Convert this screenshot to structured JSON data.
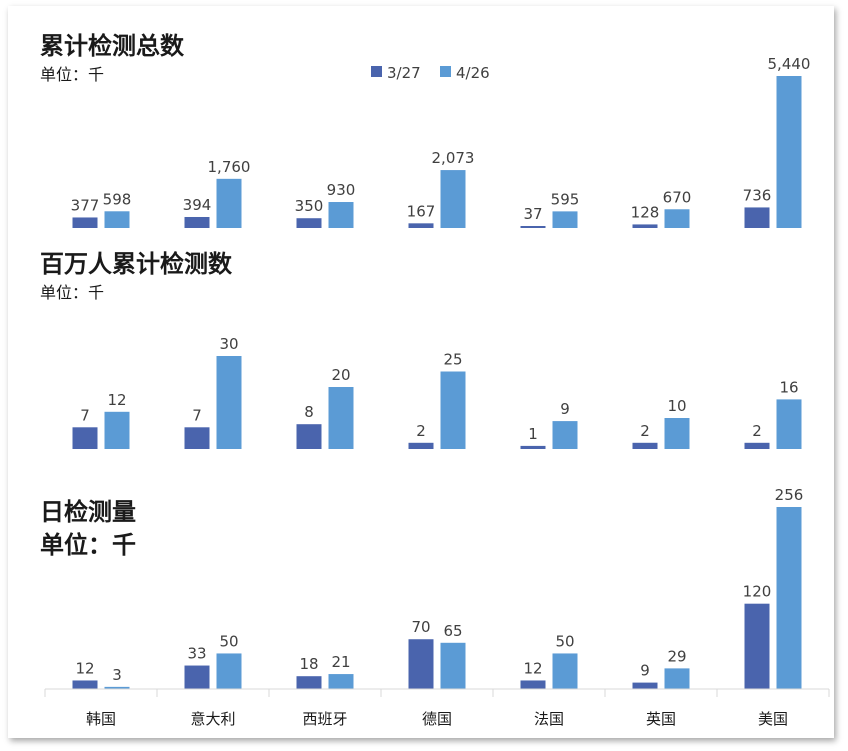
{
  "colors": {
    "series_a": "#4a64ad",
    "series_b": "#5b9bd5",
    "axis": "#d9d9d9"
  },
  "legend": [
    {
      "label": "3/27"
    },
    {
      "label": "4/26"
    }
  ],
  "chart_data": [
    {
      "type": "bar",
      "title": "累计检测总数",
      "unit": "单位：千",
      "categories": [
        "韩国",
        "意大利",
        "西班牙",
        "德国",
        "法国",
        "英国",
        "美国"
      ],
      "series": [
        {
          "name": "3/27",
          "values": [
            377,
            394,
            350,
            167,
            37,
            128,
            736
          ],
          "labels": [
            "377",
            "394",
            "350",
            "167",
            "37",
            "128",
            "736"
          ]
        },
        {
          "name": "4/26",
          "values": [
            598,
            1760,
            930,
            2073,
            595,
            670,
            5440
          ],
          "labels": [
            "598",
            "1,760",
            "930",
            "2,073",
            "595",
            "670",
            "5,440"
          ]
        }
      ]
    },
    {
      "type": "bar",
      "title": "百万人累计检测数",
      "unit": "单位：千",
      "categories": [
        "韩国",
        "意大利",
        "西班牙",
        "德国",
        "法国",
        "英国",
        "美国"
      ],
      "series": [
        {
          "name": "3/27",
          "values": [
            7,
            7,
            8,
            2,
            1,
            2,
            2
          ],
          "labels": [
            "7",
            "7",
            "8",
            "2",
            "1",
            "2",
            "2"
          ]
        },
        {
          "name": "4/26",
          "values": [
            12,
            30,
            20,
            25,
            9,
            10,
            16
          ],
          "labels": [
            "12",
            "30",
            "20",
            "25",
            "9",
            "10",
            "16"
          ]
        }
      ]
    },
    {
      "type": "bar",
      "title": "日检测量",
      "unit": "单位：千",
      "categories": [
        "韩国",
        "意大利",
        "西班牙",
        "德国",
        "法国",
        "英国",
        "美国"
      ],
      "series": [
        {
          "name": "3/27",
          "values": [
            12,
            33,
            18,
            70,
            12,
            9,
            120
          ],
          "labels": [
            "12",
            "33",
            "18",
            "70",
            "12",
            "9",
            "120"
          ]
        },
        {
          "name": "4/26",
          "values": [
            3,
            50,
            21,
            65,
            50,
            29,
            256
          ],
          "labels": [
            "3",
            "50",
            "21",
            "65",
            "50",
            "29",
            "256"
          ]
        }
      ]
    }
  ]
}
